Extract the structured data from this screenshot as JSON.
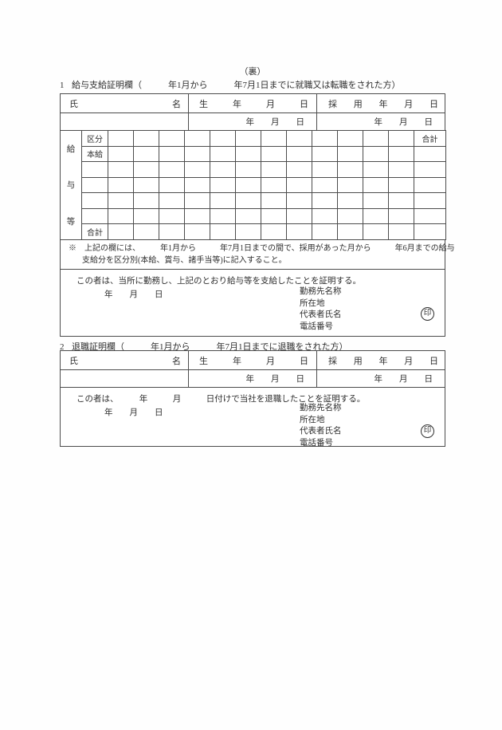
{
  "page": {
    "back_label": "（裏）"
  },
  "common_header": {
    "name_left": "氏",
    "name_right": "名",
    "birth_chars": [
      "生",
      "年",
      "月",
      "日"
    ],
    "hire_chars": [
      "採",
      "用",
      "年",
      "月",
      "日"
    ],
    "date_chars": [
      "年",
      "月",
      "日"
    ]
  },
  "section1": {
    "number": "1",
    "title": "給与支給証明欄（　　　年1月から　　　年7月1日までに就職又は転職をされた方）",
    "grid": {
      "side_chars": [
        "給",
        "与",
        "等"
      ],
      "row_labels": [
        "区分",
        "本給",
        "",
        "",
        "",
        "",
        "合計"
      ],
      "total_column_label": "合計",
      "data_columns": 12,
      "data_rows": 7
    },
    "note": {
      "line1": "※　上記の欄には、　　　年1月から　　　年7月1日までの間で、採用があった月から　　　年6月までの給与",
      "line2": "支給分を区分別(本給、賞与、諸手当等)に記入すること。"
    },
    "cert": {
      "statement": "この者は、当所に勤務し、上記のとおり給与等を支給したことを証明する。",
      "date_line": "年　　月　　日",
      "fields": [
        "勤務先名称",
        "所在地",
        "代表者氏名",
        "電話番号"
      ],
      "seal_char": "印"
    }
  },
  "section2": {
    "number": "2",
    "title": "退職証明欄（　　　年1月から　　　年7月1日までに退職をされた方）",
    "cert": {
      "statement": "この者は、　　　年　　　月　　　日付けで当社を退職したことを証明する。",
      "date_line": "年　　月　　日",
      "fields": [
        "勤務先名称",
        "所在地",
        "代表者氏名",
        "電話番号"
      ],
      "seal_char": "印"
    }
  }
}
